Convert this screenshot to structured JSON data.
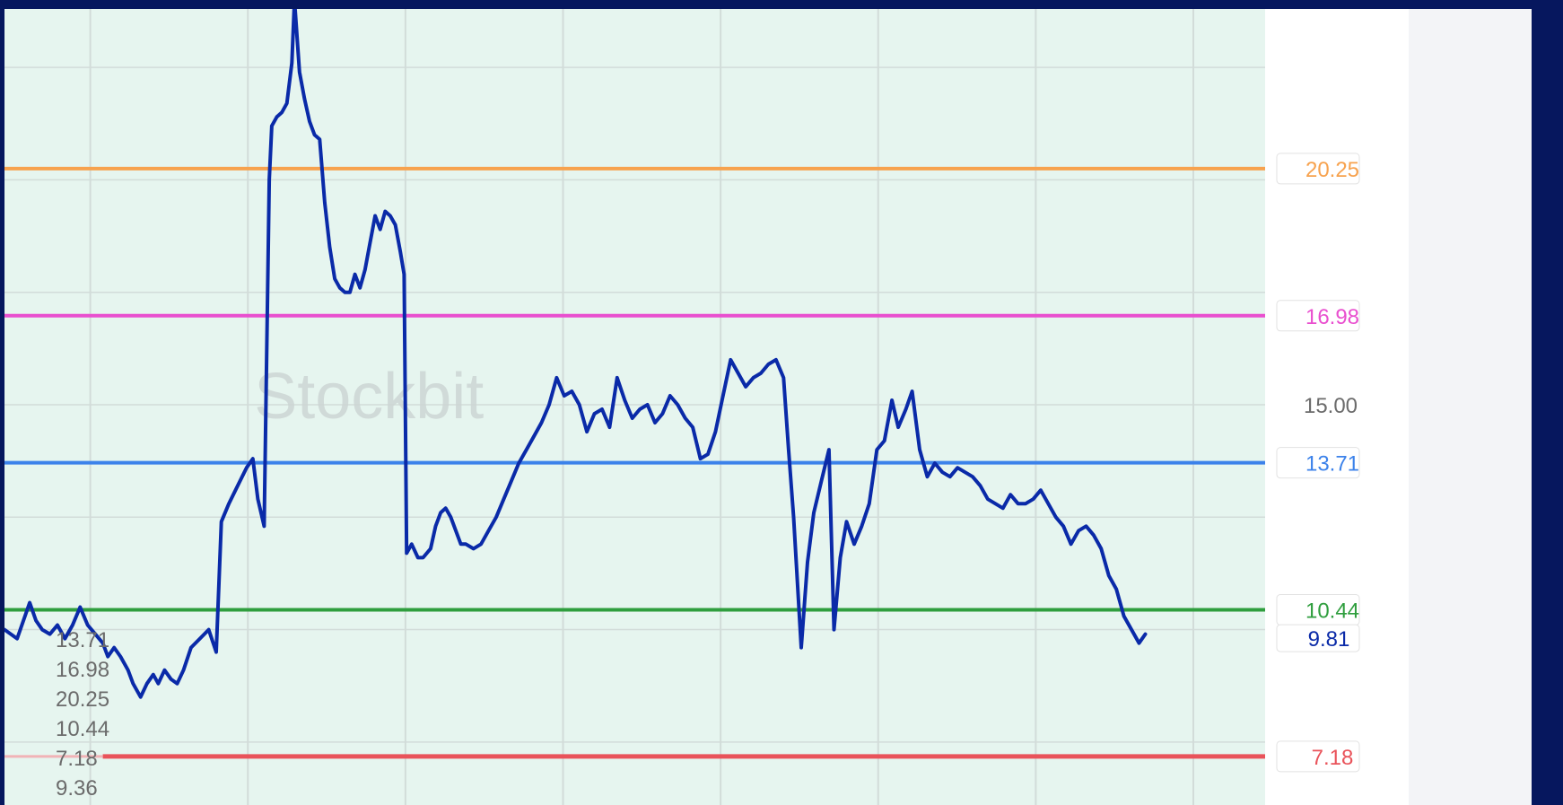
{
  "chart_data": {
    "type": "line",
    "x_range": [
      0,
      100
    ],
    "ylim": [
      6.1,
      23.8
    ],
    "grid": true,
    "watermark": "Stockbit",
    "price_line": {
      "color": "#0a2aa8",
      "points": [
        [
          0.0,
          10.0
        ],
        [
          1.0,
          9.8
        ],
        [
          2.0,
          10.6
        ],
        [
          2.5,
          10.2
        ],
        [
          3.0,
          10.0
        ],
        [
          3.6,
          9.9
        ],
        [
          4.2,
          10.1
        ],
        [
          4.8,
          9.8
        ],
        [
          5.4,
          10.1
        ],
        [
          6.0,
          10.5
        ],
        [
          6.6,
          10.1
        ],
        [
          7.2,
          9.9
        ],
        [
          7.8,
          9.7
        ],
        [
          8.2,
          9.4
        ],
        [
          8.7,
          9.6
        ],
        [
          9.2,
          9.4
        ],
        [
          9.8,
          9.1
        ],
        [
          10.2,
          8.8
        ],
        [
          10.8,
          8.5
        ],
        [
          11.3,
          8.8
        ],
        [
          11.8,
          9.0
        ],
        [
          12.2,
          8.8
        ],
        [
          12.7,
          9.1
        ],
        [
          13.2,
          8.9
        ],
        [
          13.7,
          8.8
        ],
        [
          14.2,
          9.1
        ],
        [
          14.8,
          9.6
        ],
        [
          15.5,
          9.8
        ],
        [
          16.2,
          10.0
        ],
        [
          16.8,
          9.5
        ],
        [
          17.2,
          12.4
        ],
        [
          17.8,
          12.8
        ],
        [
          18.5,
          13.2
        ],
        [
          19.2,
          13.6
        ],
        [
          19.7,
          13.8
        ],
        [
          20.1,
          12.9
        ],
        [
          20.6,
          12.3
        ],
        [
          21.0,
          20.0
        ],
        [
          21.2,
          21.2
        ],
        [
          21.6,
          21.4
        ],
        [
          22.0,
          21.5
        ],
        [
          22.4,
          21.7
        ],
        [
          22.8,
          22.6
        ],
        [
          23.0,
          24.0
        ],
        [
          23.4,
          22.4
        ],
        [
          23.8,
          21.8
        ],
        [
          24.2,
          21.3
        ],
        [
          24.6,
          21.0
        ],
        [
          25.0,
          20.9
        ],
        [
          25.4,
          19.5
        ],
        [
          25.8,
          18.5
        ],
        [
          26.2,
          17.8
        ],
        [
          26.6,
          17.6
        ],
        [
          27.0,
          17.5
        ],
        [
          27.4,
          17.5
        ],
        [
          27.8,
          17.9
        ],
        [
          28.2,
          17.6
        ],
        [
          28.6,
          18.0
        ],
        [
          29.0,
          18.6
        ],
        [
          29.4,
          19.2
        ],
        [
          29.8,
          18.9
        ],
        [
          30.2,
          19.3
        ],
        [
          30.6,
          19.2
        ],
        [
          31.0,
          19.0
        ],
        [
          31.4,
          18.4
        ],
        [
          31.7,
          17.9
        ],
        [
          31.9,
          11.7
        ],
        [
          32.3,
          11.9
        ],
        [
          32.8,
          11.6
        ],
        [
          33.2,
          11.6
        ],
        [
          33.8,
          11.8
        ],
        [
          34.2,
          12.3
        ],
        [
          34.6,
          12.6
        ],
        [
          35.0,
          12.7
        ],
        [
          35.4,
          12.5
        ],
        [
          35.8,
          12.2
        ],
        [
          36.2,
          11.9
        ],
        [
          36.6,
          11.9
        ],
        [
          37.2,
          11.8
        ],
        [
          37.8,
          11.9
        ],
        [
          38.4,
          12.2
        ],
        [
          39.0,
          12.5
        ],
        [
          39.6,
          12.9
        ],
        [
          40.2,
          13.3
        ],
        [
          40.8,
          13.7
        ],
        [
          41.4,
          14.0
        ],
        [
          42.0,
          14.3
        ],
        [
          42.6,
          14.6
        ],
        [
          43.2,
          15.0
        ],
        [
          43.8,
          15.6
        ],
        [
          44.4,
          15.2
        ],
        [
          45.0,
          15.3
        ],
        [
          45.6,
          15.0
        ],
        [
          46.2,
          14.4
        ],
        [
          46.8,
          14.8
        ],
        [
          47.4,
          14.9
        ],
        [
          48.0,
          14.5
        ],
        [
          48.6,
          15.6
        ],
        [
          49.2,
          15.1
        ],
        [
          49.8,
          14.7
        ],
        [
          50.4,
          14.9
        ],
        [
          51.0,
          15.0
        ],
        [
          51.6,
          14.6
        ],
        [
          52.2,
          14.8
        ],
        [
          52.8,
          15.2
        ],
        [
          53.4,
          15.0
        ],
        [
          54.0,
          14.7
        ],
        [
          54.6,
          14.5
        ],
        [
          55.2,
          13.8
        ],
        [
          55.8,
          13.9
        ],
        [
          56.4,
          14.4
        ],
        [
          57.0,
          15.2
        ],
        [
          57.6,
          16.0
        ],
        [
          58.2,
          15.7
        ],
        [
          58.8,
          15.4
        ],
        [
          59.4,
          15.6
        ],
        [
          60.0,
          15.7
        ],
        [
          60.6,
          15.9
        ],
        [
          61.2,
          16.0
        ],
        [
          61.8,
          15.6
        ],
        [
          62.2,
          14.0
        ],
        [
          62.6,
          12.5
        ],
        [
          63.2,
          9.6
        ],
        [
          63.7,
          11.5
        ],
        [
          64.2,
          12.6
        ],
        [
          64.8,
          13.3
        ],
        [
          65.4,
          14.0
        ],
        [
          65.8,
          10.0
        ],
        [
          66.3,
          11.6
        ],
        [
          66.8,
          12.4
        ],
        [
          67.4,
          11.9
        ],
        [
          68.0,
          12.3
        ],
        [
          68.6,
          12.8
        ],
        [
          69.2,
          14.0
        ],
        [
          69.8,
          14.2
        ],
        [
          70.4,
          15.1
        ],
        [
          70.9,
          14.5
        ],
        [
          71.5,
          14.9
        ],
        [
          72.0,
          15.3
        ],
        [
          72.6,
          14.0
        ],
        [
          73.2,
          13.4
        ],
        [
          73.8,
          13.7
        ],
        [
          74.4,
          13.5
        ],
        [
          75.0,
          13.4
        ],
        [
          75.6,
          13.6
        ],
        [
          76.2,
          13.5
        ],
        [
          76.8,
          13.4
        ],
        [
          77.4,
          13.2
        ],
        [
          78.0,
          12.9
        ],
        [
          78.6,
          12.8
        ],
        [
          79.2,
          12.7
        ],
        [
          79.8,
          13.0
        ],
        [
          80.4,
          12.8
        ],
        [
          81.0,
          12.8
        ],
        [
          81.6,
          12.9
        ],
        [
          82.2,
          13.1
        ],
        [
          82.8,
          12.8
        ],
        [
          83.4,
          12.5
        ],
        [
          84.0,
          12.3
        ],
        [
          84.6,
          11.9
        ],
        [
          85.2,
          12.2
        ],
        [
          85.8,
          12.3
        ],
        [
          86.4,
          12.1
        ],
        [
          87.0,
          11.8
        ],
        [
          87.6,
          11.2
        ],
        [
          88.2,
          10.9
        ],
        [
          88.8,
          10.3
        ],
        [
          89.4,
          10.0
        ],
        [
          90.0,
          9.7
        ],
        [
          90.5,
          9.9
        ]
      ]
    },
    "levels": [
      {
        "name": "orange",
        "value": 20.25,
        "label": "20.25",
        "color": "#f7a24e"
      },
      {
        "name": "magenta",
        "value": 16.98,
        "label": "16.98",
        "color": "#e94fcf"
      },
      {
        "name": "blue",
        "value": 13.71,
        "label": "13.71",
        "color": "#3c82ea"
      },
      {
        "name": "green",
        "value": 10.44,
        "label": "10.44",
        "color": "#2f9e3e"
      },
      {
        "name": "red",
        "value": 7.18,
        "label": "7.18",
        "color": "#e9535a"
      }
    ],
    "axis_label": {
      "value": 15.0,
      "label": "15.00"
    },
    "last_price": {
      "value": 9.81,
      "label": "9.81",
      "color": "#0a2aa8"
    },
    "overlay_list": [
      "13.71",
      "16.98",
      "20.25",
      "10.44",
      "7.18",
      "9.36"
    ],
    "colors": {
      "plot_bg": "#e6f5ef",
      "grid": "#d2dcd9",
      "axis_text": "#6b6b6b"
    }
  }
}
